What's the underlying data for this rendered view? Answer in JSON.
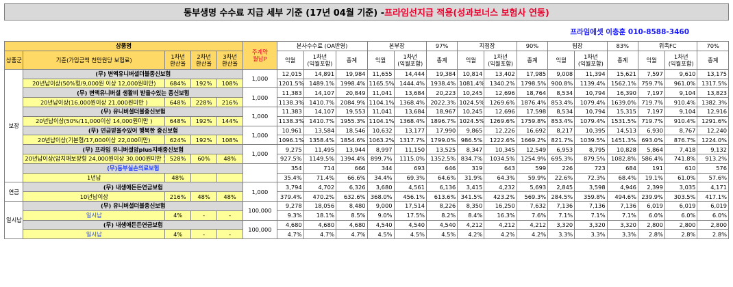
{
  "title": {
    "part1": "동부생명 수수료 지급 세부 기준 (17년 04월 기준) - ",
    "part2": "프라임선지급 적용(성과보너스 보험사 연동)"
  },
  "contact": "프라임에셋 이충훈 010-8588-3460",
  "headers": {
    "product_name": "상품명",
    "main_premium": "주계약\n월납P",
    "group": "상품군",
    "criteria": "기준(가입금액 천만원당 보험료)",
    "year1": "1차년\n환산율",
    "year2": "2차년\n환산율",
    "year3": "3차년\n환산율",
    "blocks": [
      {
        "name": "본사수수료 (OA반영)",
        "pct": ""
      },
      {
        "name": "본부장",
        "pct": "97%"
      },
      {
        "name": "지점장",
        "pct": "90%"
      },
      {
        "name": "팀장",
        "pct": "83%"
      },
      {
        "name": "위촉FC",
        "pct": "70%"
      }
    ],
    "sub": {
      "s1": "익월",
      "s2": "1차년\n(익월포함)",
      "s3": "총계"
    }
  },
  "groups": [
    {
      "name": "보장",
      "items": [
        {
          "product": "(무) 변액유니버셜더블종신보험",
          "criteria": "20년납이상(50%형/9,000원 이상 12,000원미만)",
          "rates": [
            "684%",
            "192%",
            "108%"
          ],
          "premium": "1,000",
          "row1": [
            "12,015",
            "14,891",
            "19,984",
            "11,655",
            "14,444",
            "19,384",
            "10,814",
            "13,402",
            "17,985",
            "9,008",
            "11,394",
            "15,621",
            "7,597",
            "9,610",
            "13,175"
          ],
          "row2": [
            "1201.5%",
            "1489.1%",
            "1998.4%",
            "1165.5%",
            "1444.4%",
            "1938.4%",
            "1081.4%",
            "1340.2%",
            "1798.5%",
            "900.8%",
            "1139.4%",
            "1562.1%",
            "759.7%",
            "961.0%",
            "1317.5%"
          ]
        },
        {
          "product": "(무) 변액유니버셜 생활비 받을수있는 종신보험",
          "criteria": "20년납이상(16,000원이상 21,000원미만 )",
          "rates": [
            "648%",
            "228%",
            "216%"
          ],
          "premium": "1,000",
          "row1": [
            "11,383",
            "14,107",
            "20,849",
            "11,041",
            "13,684",
            "20,223",
            "10,245",
            "12,696",
            "18,764",
            "8,534",
            "10,794",
            "16,390",
            "7,197",
            "9,104",
            "13,823"
          ],
          "row2": [
            "1138.3%",
            "1410.7%",
            "2084.9%",
            "1104.1%",
            "1368.4%",
            "2022.3%",
            "1024.5%",
            "1269.6%",
            "1876.4%",
            "853.4%",
            "1079.4%",
            "1639.0%",
            "719.7%",
            "910.4%",
            "1382.3%"
          ]
        },
        {
          "product": "(무) 유니버셜더블종신보험",
          "criteria": "20년납이상(50%/11,000이상 14,000원미만 )",
          "rates": [
            "648%",
            "192%",
            "144%"
          ],
          "premium": "1,000",
          "row1": [
            "11,383",
            "14,107",
            "19,553",
            "11,041",
            "13,684",
            "18,967",
            "10,245",
            "12,696",
            "17,598",
            "8,534",
            "10,794",
            "15,315",
            "7,197",
            "9,104",
            "12,916"
          ],
          "row2": [
            "1138.3%",
            "1410.7%",
            "1955.3%",
            "1104.1%",
            "1368.4%",
            "1896.7%",
            "1024.5%",
            "1269.6%",
            "1759.8%",
            "853.4%",
            "1079.4%",
            "1531.5%",
            "719.7%",
            "910.4%",
            "1291.6%"
          ]
        },
        {
          "product": "(무) 연금받을수있어 행복한 종신보험",
          "criteria": "20년납이상(기본형/17,000이상 22,000미만)",
          "rates": [
            "624%",
            "192%",
            "108%"
          ],
          "premium": "1,000",
          "row1": [
            "10,961",
            "13,584",
            "18,546",
            "10,632",
            "13,177",
            "17,990",
            "9,865",
            "12,226",
            "16,692",
            "8,217",
            "10,395",
            "14,513",
            "6,930",
            "8,767",
            "12,240"
          ],
          "row2": [
            "1096.1%",
            "1358.4%",
            "1854.6%",
            "1063.2%",
            "1317.7%",
            "1799.0%",
            "986.5%",
            "1222.6%",
            "1669.2%",
            "821.7%",
            "1039.5%",
            "1451.3%",
            "693.0%",
            "876.7%",
            "1224.0%"
          ]
        },
        {
          "product": "(무) 프라임 유니버셜암plus지배종신보험",
          "criteria": "20년납이상(암치매보장형 24,000원이상 30,000원미만 )",
          "rates": [
            "528%",
            "60%",
            "48%"
          ],
          "premium": "1,000",
          "row1": [
            "9,275",
            "11,495",
            "13,944",
            "8,997",
            "11,150",
            "13,525",
            "8,347",
            "10,345",
            "12,549",
            "6,953",
            "8,795",
            "10,828",
            "5,864",
            "7,418",
            "9,132"
          ],
          "row2": [
            "927.5%",
            "1149.5%",
            "1394.4%",
            "899.7%",
            "1115.0%",
            "1352.5%",
            "834.7%",
            "1034.5%",
            "1254.9%",
            "695.3%",
            "879.5%",
            "1082.8%",
            "586.4%",
            "741.8%",
            "913.2%"
          ]
        },
        {
          "product": "(무)동부실손의료보험",
          "criteria": "1년납",
          "rates": [
            "48%",
            "",
            ""
          ],
          "premium": "",
          "row1": [
            "354",
            "714",
            "666",
            "344",
            "693",
            "646",
            "319",
            "643",
            "599",
            "226",
            "723",
            "684",
            "191",
            "610",
            "576"
          ],
          "row2": [
            "35.4%",
            "71.4%",
            "66.6%",
            "34.4%",
            "69.3%",
            "64.6%",
            "31.9%",
            "64.3%",
            "59.9%",
            "22.6%",
            "72.3%",
            "68.4%",
            "19.1%",
            "61.0%",
            "57.6%"
          ]
        }
      ]
    },
    {
      "name": "연금",
      "items": [
        {
          "product": "(무) 내생애든든연금보험",
          "criteria": "10년납이상",
          "rates": [
            "216%",
            "48%",
            "48%"
          ],
          "premium": "1,000",
          "row1": [
            "3,794",
            "4,702",
            "6,326",
            "3,680",
            "4,561",
            "6,136",
            "3,415",
            "4,232",
            "5,693",
            "2,845",
            "3,598",
            "4,946",
            "2,399",
            "3,035",
            "4,171"
          ],
          "row2": [
            "379.4%",
            "470.2%",
            "632.6%",
            "368.0%",
            "456.1%",
            "613.6%",
            "341.5%",
            "423.2%",
            "569.3%",
            "284.5%",
            "359.8%",
            "494.6%",
            "239.9%",
            "303.5%",
            "417.1%"
          ]
        }
      ]
    },
    {
      "name": "일시납",
      "items": [
        {
          "product": "(무) 유니버셜더블종신보험",
          "criteria": "일시납",
          "rates": [
            "4%",
            "-",
            "-"
          ],
          "premium": "100,000",
          "row1": [
            "9,278",
            "18,056",
            "8,480",
            "9,000",
            "17,514",
            "8,226",
            "8,350",
            "16,250",
            "7,632",
            "7,136",
            "7,136",
            "7,136",
            "6,019",
            "6,019",
            "6,019"
          ],
          "row2": [
            "9.3%",
            "18.1%",
            "8.5%",
            "9.0%",
            "17.5%",
            "8.2%",
            "8.4%",
            "16.3%",
            "7.6%",
            "7.1%",
            "7.1%",
            "7.1%",
            "6.0%",
            "6.0%",
            "6.0%"
          ]
        },
        {
          "product": "(무) 내생애든든연금보험",
          "criteria": "일시납",
          "rates": [
            "4%",
            "-",
            "-"
          ],
          "premium": "100,000",
          "row1": [
            "4,680",
            "4,680",
            "4,680",
            "4,540",
            "4,540",
            "4,540",
            "4,212",
            "4,212",
            "4,212",
            "3,320",
            "3,320",
            "3,320",
            "2,800",
            "2,800",
            "2,800"
          ],
          "row2": [
            "4.7%",
            "4.7%",
            "4.7%",
            "4.5%",
            "4.5%",
            "4.5%",
            "4.2%",
            "4.2%",
            "4.2%",
            "3.3%",
            "3.3%",
            "3.3%",
            "2.8%",
            "2.8%",
            "2.8%"
          ]
        }
      ]
    }
  ]
}
